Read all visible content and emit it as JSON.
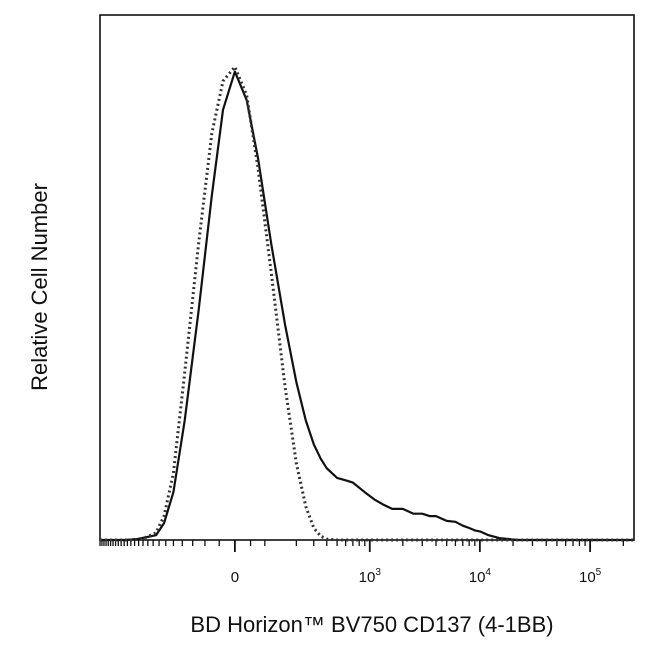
{
  "chart_data": {
    "type": "line",
    "title": "",
    "xlabel": "BD Horizon™ BV750 CD137 (4-1BB)",
    "ylabel": "Relative Cell Number",
    "x_scale": "biexponential",
    "xlim": [
      -1000,
      250000
    ],
    "ylim": [
      0,
      1
    ],
    "grid": false,
    "legend": "none",
    "x_ticks": [
      {
        "value": 0,
        "base": "0",
        "exp": ""
      },
      {
        "value": 1000,
        "base": "10",
        "exp": "3"
      },
      {
        "value": 10000,
        "base": "10",
        "exp": "4"
      },
      {
        "value": 100000,
        "base": "10",
        "exp": "5"
      }
    ],
    "series": [
      {
        "style": "solid",
        "color": "#111111",
        "x": [
          -1000,
          -600,
          -450,
          -300,
          -250,
          -200,
          -150,
          -100,
          -60,
          -30,
          0,
          30,
          60,
          100,
          150,
          200,
          250,
          300,
          350,
          400,
          500,
          600,
          700,
          900,
          1100,
          1300,
          1600,
          2000,
          2500,
          3000,
          3500,
          4000,
          5000,
          6000,
          7000,
          8000,
          9000,
          10000,
          12000,
          15000,
          18000,
          22000,
          30000,
          50000,
          100000,
          250000
        ],
        "y": [
          0,
          0,
          0.002,
          0.01,
          0.035,
          0.1,
          0.25,
          0.48,
          0.72,
          0.9,
          0.98,
          0.92,
          0.8,
          0.62,
          0.45,
          0.33,
          0.25,
          0.2,
          0.17,
          0.15,
          0.13,
          0.125,
          0.12,
          0.1,
          0.085,
          0.075,
          0.065,
          0.065,
          0.055,
          0.055,
          0.05,
          0.05,
          0.04,
          0.038,
          0.03,
          0.025,
          0.02,
          0.018,
          0.01,
          0.004,
          0.002,
          0,
          0,
          0,
          0,
          0
        ]
      },
      {
        "style": "dotted",
        "color": "#333333",
        "x": [
          -1000,
          -500,
          -400,
          -300,
          -250,
          -200,
          -150,
          -100,
          -60,
          -30,
          0,
          30,
          60,
          100,
          150,
          200,
          250,
          300,
          350,
          400,
          500,
          700,
          1000,
          250000
        ],
        "y": [
          0,
          0,
          0.003,
          0.015,
          0.05,
          0.14,
          0.35,
          0.62,
          0.85,
          0.96,
          0.99,
          0.93,
          0.78,
          0.56,
          0.32,
          0.16,
          0.07,
          0.025,
          0.008,
          0.002,
          0,
          0,
          0,
          0
        ]
      }
    ]
  }
}
